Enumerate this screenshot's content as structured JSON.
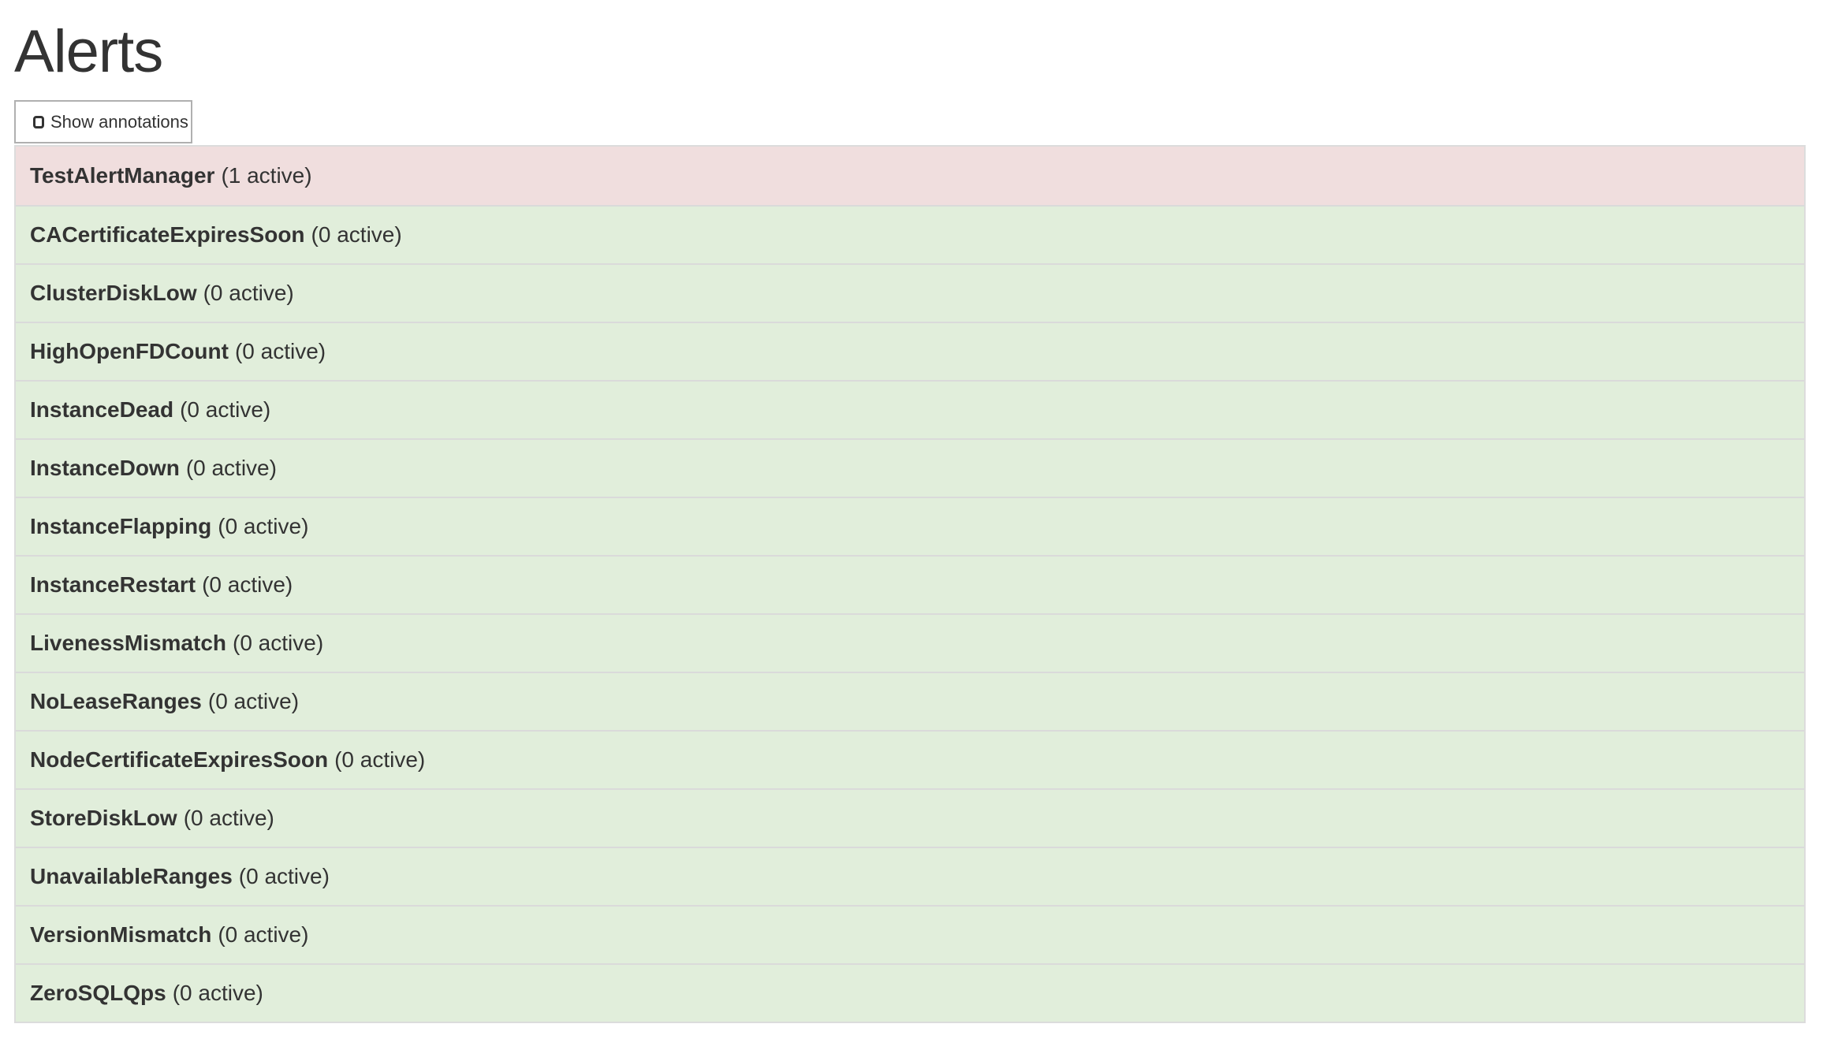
{
  "page": {
    "title": "Alerts"
  },
  "toolbar": {
    "show_annotations_label": "Show annotations",
    "show_annotations_checked": false
  },
  "colors": {
    "firing_bg": "#f0dede",
    "inactive_bg": "#e1eedb"
  },
  "alerts": [
    {
      "name": "TestAlertManager",
      "count": "(1 active)",
      "state": "firing"
    },
    {
      "name": "CACertificateExpiresSoon",
      "count": "(0 active)",
      "state": "inactive"
    },
    {
      "name": "ClusterDiskLow",
      "count": "(0 active)",
      "state": "inactive"
    },
    {
      "name": "HighOpenFDCount",
      "count": "(0 active)",
      "state": "inactive"
    },
    {
      "name": "InstanceDead",
      "count": "(0 active)",
      "state": "inactive"
    },
    {
      "name": "InstanceDown",
      "count": "(0 active)",
      "state": "inactive"
    },
    {
      "name": "InstanceFlapping",
      "count": "(0 active)",
      "state": "inactive"
    },
    {
      "name": "InstanceRestart",
      "count": "(0 active)",
      "state": "inactive"
    },
    {
      "name": "LivenessMismatch",
      "count": "(0 active)",
      "state": "inactive"
    },
    {
      "name": "NoLeaseRanges",
      "count": "(0 active)",
      "state": "inactive"
    },
    {
      "name": "NodeCertificateExpiresSoon",
      "count": "(0 active)",
      "state": "inactive"
    },
    {
      "name": "StoreDiskLow",
      "count": "(0 active)",
      "state": "inactive"
    },
    {
      "name": "UnavailableRanges",
      "count": "(0 active)",
      "state": "inactive"
    },
    {
      "name": "VersionMismatch",
      "count": "(0 active)",
      "state": "inactive"
    },
    {
      "name": "ZeroSQLQps",
      "count": "(0 active)",
      "state": "inactive"
    }
  ]
}
